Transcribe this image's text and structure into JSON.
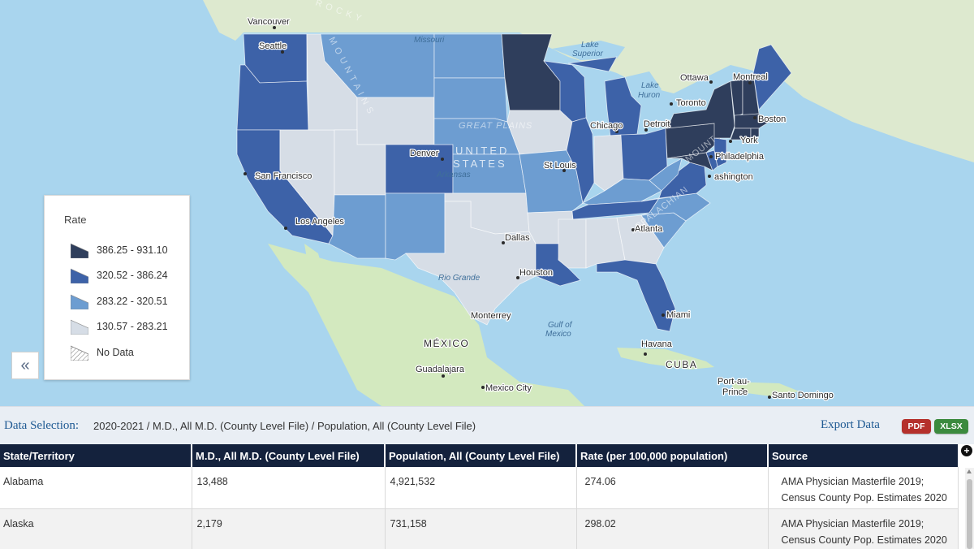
{
  "colors": {
    "rate_tier_1": "#2f3e5c",
    "rate_tier_2": "#3d62a8",
    "rate_tier_3": "#6d9dd1",
    "rate_tier_4": "#d6dde6",
    "ocean": "#a9d5ee",
    "land_mexico": "#d3e9bf",
    "land_canada": "#dde9cf",
    "header_bg": "#14223d",
    "pdf": "#b5302b",
    "xlsx": "#3b8a3e"
  },
  "map": {
    "labels": {
      "vancouver": "Vancouver",
      "seattle": "Seattle",
      "san_francisco": "San Francisco",
      "los_angeles": "Los Angeles",
      "denver": "Denver",
      "dallas": "Dallas",
      "houston": "Houston",
      "st_louis": "St Louis",
      "chicago": "Chicago",
      "detroit": "Detroit",
      "toronto": "Toronto",
      "ottawa": "Ottawa",
      "montreal": "Montreal",
      "boston": "Boston",
      "york": "York",
      "philadelphia": "Philadelphia",
      "washington": "ashington",
      "atlanta": "Atlanta",
      "miami": "Miami",
      "havana": "Havana",
      "cuba": "CUBA",
      "port_au_prince_1": "Port-au-",
      "port_au_prince_2": "Prince",
      "santo_domingo": "Santo Domingo",
      "monterrey": "Monterrey",
      "mexico_country": "MÉXICO",
      "guadalajara": "Guadalajara",
      "mexico_city": "Mexico City",
      "united_states_1": "UNITED",
      "united_states_2": "STATES",
      "great_plains": "GREAT PLAINS",
      "lake_superior_1": "Lake",
      "lake_superior_2": "Superior",
      "lake_huron_1": "Lake",
      "lake_huron_2": "Huron",
      "gulf_1": "Gulf of",
      "gulf_2": "Mexico",
      "missouri": "Missouri",
      "arkansas": "Arkansas",
      "rio_grande": "Rio Grande",
      "rocky_1": "R O C K Y",
      "rocky_2": "M O U N T A I N S",
      "appalachian": "APPALACHIAN",
      "mount": "MOUNT"
    },
    "state_rates": [
      {
        "state": "Washington",
        "tier": 2
      },
      {
        "state": "Oregon",
        "tier": 2
      },
      {
        "state": "California",
        "tier": 2
      },
      {
        "state": "Nevada",
        "tier": 4
      },
      {
        "state": "Idaho",
        "tier": 4
      },
      {
        "state": "Montana",
        "tier": 3
      },
      {
        "state": "Wyoming",
        "tier": 4
      },
      {
        "state": "Utah",
        "tier": 4
      },
      {
        "state": "Arizona",
        "tier": 3
      },
      {
        "state": "Colorado",
        "tier": 2
      },
      {
        "state": "New Mexico",
        "tier": 3
      },
      {
        "state": "North Dakota",
        "tier": 3
      },
      {
        "state": "South Dakota",
        "tier": 3
      },
      {
        "state": "Nebraska",
        "tier": 3
      },
      {
        "state": "Kansas",
        "tier": 3
      },
      {
        "state": "Oklahoma",
        "tier": 4
      },
      {
        "state": "Texas",
        "tier": 4
      },
      {
        "state": "Minnesota",
        "tier": 1
      },
      {
        "state": "Iowa",
        "tier": 4
      },
      {
        "state": "Missouri",
        "tier": 3
      },
      {
        "state": "Arkansas",
        "tier": 4
      },
      {
        "state": "Louisiana",
        "tier": 2
      },
      {
        "state": "Wisconsin",
        "tier": 2
      },
      {
        "state": "Illinois",
        "tier": 2
      },
      {
        "state": "Michigan",
        "tier": 2
      },
      {
        "state": "Indiana",
        "tier": 4
      },
      {
        "state": "Ohio",
        "tier": 2
      },
      {
        "state": "Kentucky",
        "tier": 3
      },
      {
        "state": "Tennessee",
        "tier": 2
      },
      {
        "state": "Mississippi",
        "tier": 4
      },
      {
        "state": "Alabama",
        "tier": 4
      },
      {
        "state": "Georgia",
        "tier": 4
      },
      {
        "state": "Florida",
        "tier": 2
      },
      {
        "state": "South Carolina",
        "tier": 3
      },
      {
        "state": "North Carolina",
        "tier": 3
      },
      {
        "state": "Virginia",
        "tier": 2
      },
      {
        "state": "West Virginia",
        "tier": 3
      },
      {
        "state": "Pennsylvania",
        "tier": 1
      },
      {
        "state": "New York",
        "tier": 1
      },
      {
        "state": "Maryland",
        "tier": 1
      },
      {
        "state": "Delaware",
        "tier": 2
      },
      {
        "state": "New Jersey",
        "tier": 2
      },
      {
        "state": "Vermont",
        "tier": 1
      },
      {
        "state": "New Hampshire",
        "tier": 1
      },
      {
        "state": "Maine",
        "tier": 2
      },
      {
        "state": "Massachusetts",
        "tier": 1
      },
      {
        "state": "Connecticut",
        "tier": 1
      },
      {
        "state": "Rhode Island",
        "tier": 1
      }
    ]
  },
  "legend": {
    "title": "Rate",
    "items": [
      {
        "label": "386.25 - 931.10",
        "color": "#2f3e5c"
      },
      {
        "label": "320.52 - 386.24",
        "color": "#3d62a8"
      },
      {
        "label": "283.22 - 320.51",
        "color": "#6d9dd1"
      },
      {
        "label": "130.57 - 283.21",
        "color": "#d6dde6"
      },
      {
        "label": "No Data",
        "color": "hatched"
      }
    ],
    "collapse_icon": "«"
  },
  "selection_bar": {
    "label": "Data Selection:",
    "value": "2020-2021 / M.D., All M.D. (County Level File) / Population, All (County Level File)",
    "export_label": "Export Data",
    "pdf_label": "PDF",
    "xlsx_label": "XLSX"
  },
  "table": {
    "columns": [
      "State/Territory",
      "M.D., All M.D. (County Level File)",
      "Population, All (County Level File)",
      "Rate (per 100,000 population)",
      "Source"
    ],
    "rows": [
      {
        "state": "Alabama",
        "md": "13,488",
        "population": "4,921,532",
        "rate": "274.06",
        "source_line1": "AMA Physician Masterfile 2019;",
        "source_line2": "Census County Pop. Estimates 2020"
      },
      {
        "state": "Alaska",
        "md": "2,179",
        "population": "731,158",
        "rate": "298.02",
        "source_line1": "AMA Physician Masterfile 2019;",
        "source_line2": "Census County Pop. Estimates 2020"
      }
    ],
    "expand_icon": "+"
  }
}
